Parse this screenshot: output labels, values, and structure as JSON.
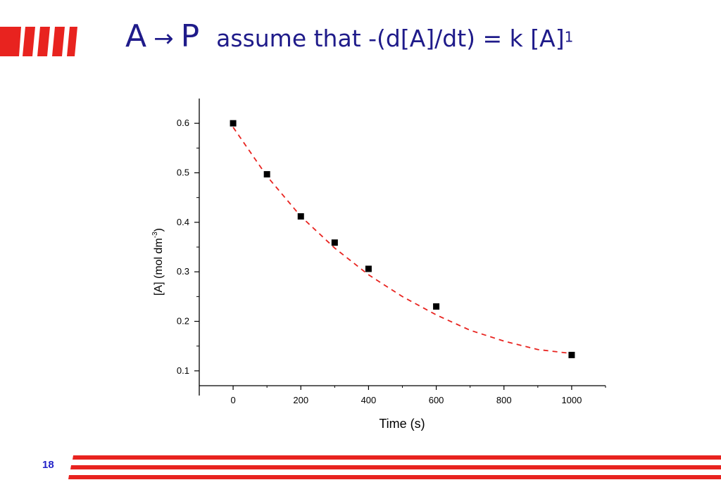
{
  "slide": {
    "title_lhs": "A",
    "title_arrow": "→",
    "title_rhs": "P",
    "title_assumption": "assume that -(d[A]/dt) = k [A]",
    "title_exponent": "1",
    "page_number": "18",
    "colors": {
      "accent_red": "#e8231f",
      "title_blue": "#1f1b8a",
      "page_number_blue": "#2424c8"
    }
  },
  "chart_data": {
    "type": "scatter",
    "xlabel": "Time (s)",
    "ylabel": "[A] (mol dm",
    "ylabel_sup": "-3",
    "ylabel_close": ")",
    "xlim": [
      -100,
      1100
    ],
    "ylim": [
      0.07,
      0.65
    ],
    "xticks": [
      0,
      200,
      400,
      600,
      800,
      1000
    ],
    "xtick_labels": [
      "0",
      "200",
      "400",
      "600",
      "800",
      "1000"
    ],
    "yticks": [
      0.1,
      0.2,
      0.3,
      0.4,
      0.5,
      0.6
    ],
    "ytick_labels": [
      "0.1",
      "0.2",
      "0.3",
      "0.4",
      "0.5",
      "0.6"
    ],
    "grid": false,
    "series": [
      {
        "kind": "points",
        "marker": "square",
        "color": "#000000",
        "x": [
          0,
          100,
          200,
          300,
          400,
          600,
          1000
        ],
        "y": [
          0.6,
          0.497,
          0.412,
          0.359,
          0.306,
          0.23,
          0.132
        ]
      },
      {
        "kind": "fit",
        "style": "dashed",
        "color": "#e8231f",
        "x": [
          0,
          100,
          200,
          300,
          400,
          500,
          600,
          700,
          800,
          900,
          1000
        ],
        "y": [
          0.592,
          0.493,
          0.412,
          0.348,
          0.294,
          0.25,
          0.213,
          0.182,
          0.16,
          0.143,
          0.135
        ]
      }
    ]
  }
}
